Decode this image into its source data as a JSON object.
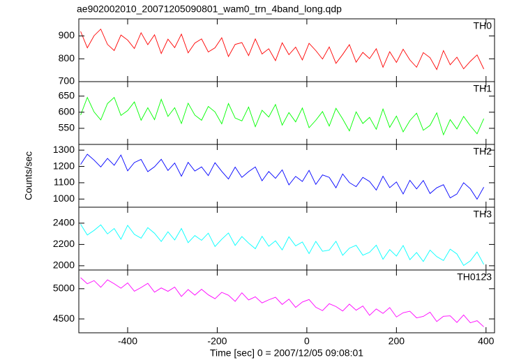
{
  "chart_data": {
    "type": "line",
    "title": "ae902002010_20071205090801_wam0_trn_4band_long.qdp",
    "xlabel": "Time [sec] 0 = 2007/12/05 09:08:01",
    "ylabel": "Counts/sec",
    "xlim": [
      -509,
      419
    ],
    "xticks": [
      -400,
      -200,
      0,
      200,
      400
    ],
    "x": [
      -505,
      -490,
      -475,
      -460,
      -445,
      -430,
      -415,
      -400,
      -385,
      -370,
      -355,
      -340,
      -325,
      -310,
      -295,
      -280,
      -265,
      -250,
      -235,
      -220,
      -205,
      -190,
      -175,
      -160,
      -145,
      -130,
      -115,
      -100,
      -85,
      -70,
      -55,
      -40,
      -25,
      -10,
      5,
      20,
      35,
      50,
      65,
      80,
      95,
      110,
      125,
      140,
      155,
      170,
      185,
      200,
      215,
      230,
      245,
      260,
      275,
      290,
      305,
      320,
      335,
      350,
      365,
      380,
      395
    ],
    "panels": [
      {
        "ylim": [
          700,
          975
        ],
        "yticks": [
          700,
          800,
          900
        ],
        "series": [
          {
            "name": "TH0",
            "color": "#ff0000",
            "values": [
              920,
              848,
              901,
              930,
              863,
              836,
              904,
              882,
              845,
              914,
              862,
              905,
              823,
              886,
              849,
              908,
              826,
              869,
              887,
              830,
              848,
              892,
              810,
              863,
              871,
              814,
              887,
              821,
              844,
              792,
              870,
              818,
              851,
              795,
              868,
              836,
              799,
              852,
              780,
              819,
              862,
              785,
              828,
              801,
              844,
              763,
              831,
              784,
              842,
              795,
              763,
              827,
              805,
              753,
              836,
              774,
              807,
              756,
              789,
              817,
              755
            ]
          }
        ]
      },
      {
        "ylim": [
          500,
          695
        ],
        "yticks": [
          550,
          600,
          650
        ],
        "series": [
          {
            "name": "TH1",
            "color": "#00ff00",
            "values": [
              591,
              646,
              601,
              576,
              627,
              646,
              590,
              605,
              632,
              575,
              614,
              577,
              640,
              587,
              614,
              565,
              628,
              591,
              575,
              618,
              601,
              564,
              627,
              582,
              573,
              616,
              555,
              606,
              585,
              624,
              560,
              599,
              570,
              613,
              552,
              575,
              602,
              557,
              612,
              579,
              542,
              601,
              565,
              584,
              547,
              610,
              553,
              588,
              539,
              574,
              597,
              544,
              559,
              598,
              530,
              577,
              548,
              587,
              558,
              533,
              580
            ]
          }
        ]
      },
      {
        "ylim": [
          950,
          1335
        ],
        "yticks": [
          1000,
          1100,
          1200,
          1300
        ],
        "series": [
          {
            "name": "TH2",
            "color": "#0000ff",
            "values": [
              1212,
              1275,
              1239,
              1197,
              1249,
              1207,
              1270,
              1173,
              1224,
              1243,
              1168,
              1198,
              1244,
              1175,
              1221,
              1140,
              1225,
              1172,
              1197,
              1144,
              1223,
              1170,
              1123,
              1196,
              1133,
              1168,
              1197,
              1112,
              1169,
              1127,
              1179,
              1087,
              1139,
              1108,
              1176,
              1090,
              1148,
              1133,
              1069,
              1154,
              1101,
              1076,
              1133,
              1108,
              1055,
              1140,
              1070,
              1105,
              1031,
              1115,
              1062,
              1114,
              1034,
              1069,
              1088,
              1007,
              1031,
              1100,
              1063,
              999,
              1073
            ]
          }
        ]
      },
      {
        "ylim": [
          1960,
          2550
        ],
        "yticks": [
          2000,
          2200,
          2400
        ],
        "series": [
          {
            "name": "TH3",
            "color": "#00ffff",
            "values": [
              2390,
              2289,
              2332,
              2384,
              2299,
              2350,
              2249,
              2380,
              2295,
              2259,
              2358,
              2305,
              2228,
              2319,
              2242,
              2350,
              2217,
              2284,
              2239,
              2306,
              2181,
              2249,
              2308,
              2191,
              2274,
              2213,
              2160,
              2276,
              2183,
              2234,
              2149,
              2272,
              2187,
              2223,
              2114,
              2229,
              2136,
              2147,
              2230,
              2098,
              2165,
              2192,
              2099,
              2126,
              2193,
              2061,
              2152,
              2091,
              2190,
              2057,
              2124,
              2040,
              2147,
              2086,
              2049,
              2156,
              2111,
              2003,
              2046,
              2129,
              2012
            ]
          }
        ]
      },
      {
        "ylim": [
          4270,
          5310
        ],
        "yticks": [
          4500,
          5000
        ],
        "series": [
          {
            "name": "TH0123",
            "color": "#ff00ff",
            "values": [
              5183,
              5082,
              5134,
              5024,
              5147,
              5082,
              5008,
              5096,
              4959,
              5020,
              5089,
              4943,
              5013,
              4957,
              5027,
              4872,
              4986,
              4894,
              4991,
              4899,
              4834,
              4940,
              4892,
              4791,
              4933,
              4814,
              4866,
              4765,
              4816,
              4859,
              4740,
              4828,
              4691,
              4779,
              4821,
              4693,
              4637,
              4752,
              4705,
              4631,
              4745,
              4644,
              4714,
              4559,
              4665,
              4591,
              4687,
              4532,
              4602,
              4627,
              4517,
              4542,
              4611,
              4456,
              4544,
              4551,
              4441,
              4565,
              4436,
              4470,
              4369
            ]
          }
        ]
      }
    ]
  }
}
